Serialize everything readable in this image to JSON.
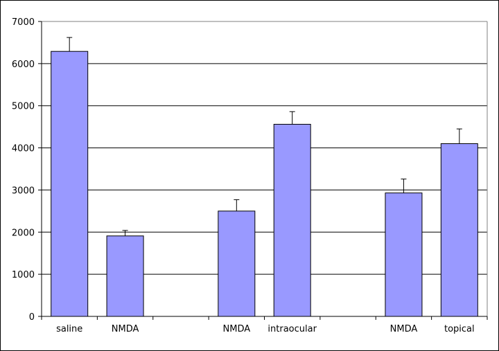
{
  "chart_data": {
    "type": "bar",
    "categories": [
      "saline",
      "NMDA",
      "",
      "NMDA",
      "intraocular",
      "",
      "NMDA",
      "topical"
    ],
    "values": [
      6290,
      1910,
      null,
      2500,
      4560,
      null,
      2930,
      4100
    ],
    "errors": [
      330,
      130,
      null,
      270,
      300,
      null,
      330,
      350
    ],
    "ylim": [
      0,
      7000
    ],
    "yticks": [
      0,
      1000,
      2000,
      3000,
      4000,
      5000,
      6000,
      7000
    ],
    "grid": true,
    "bar_color": "#9999ff",
    "title": "",
    "xlabel": "",
    "ylabel": ""
  }
}
